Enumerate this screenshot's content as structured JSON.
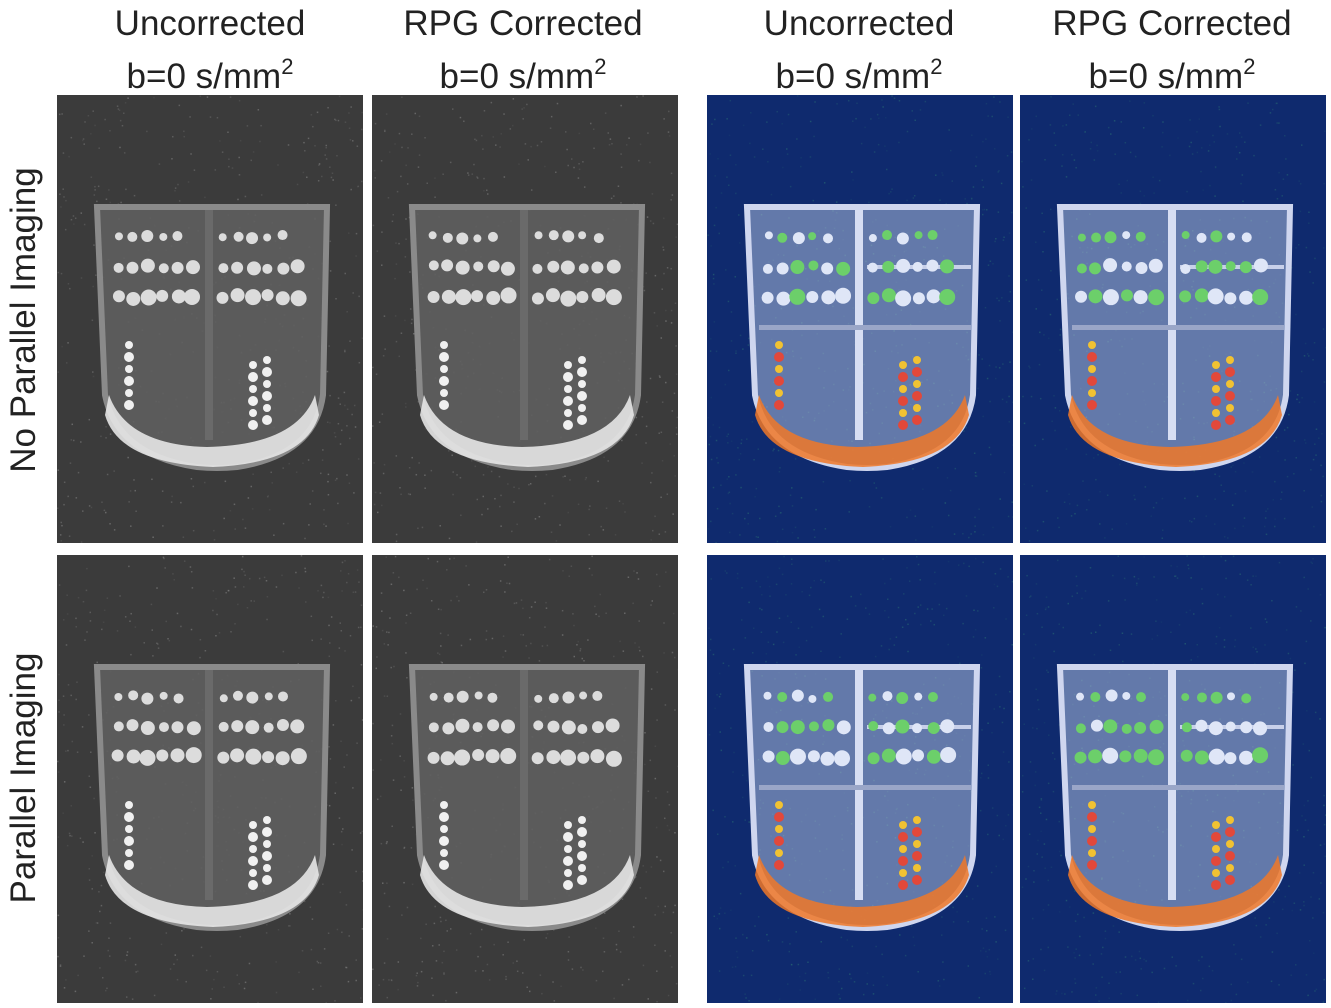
{
  "column_titles": [
    {
      "line1": "Uncorrected",
      "line2_base": "b=0 s/mm",
      "line2_sup": "2"
    },
    {
      "line1": "RPG Corrected",
      "line2_base": "b=0 s/mm",
      "line2_sup": "2"
    },
    {
      "line1": "Uncorrected",
      "line2_base": "b=0 s/mm",
      "line2_sup": "2"
    },
    {
      "line1": "RPG Corrected",
      "line2_base": "b=0 s/mm",
      "line2_sup": "2"
    }
  ],
  "row_labels": [
    "No Parallel Imaging",
    "Parallel Imaging"
  ],
  "colors": {
    "grayscale_background": "#3b3b3b",
    "overlay_background": "#0f2a6e",
    "overlay_phantom": "#c9d3ee"
  },
  "panels": [
    {
      "row": 0,
      "col": 0,
      "style": "grayscale",
      "description_icon": "mri-phantom-image"
    },
    {
      "row": 0,
      "col": 1,
      "style": "grayscale",
      "description_icon": "mri-phantom-image"
    },
    {
      "row": 0,
      "col": 2,
      "style": "overlay",
      "description_icon": "mri-phantom-overlay"
    },
    {
      "row": 0,
      "col": 3,
      "style": "overlay",
      "description_icon": "mri-phantom-overlay"
    },
    {
      "row": 1,
      "col": 0,
      "style": "grayscale",
      "description_icon": "mri-phantom-image"
    },
    {
      "row": 1,
      "col": 1,
      "style": "grayscale",
      "description_icon": "mri-phantom-image"
    },
    {
      "row": 1,
      "col": 2,
      "style": "overlay",
      "description_icon": "mri-phantom-overlay"
    },
    {
      "row": 1,
      "col": 3,
      "style": "overlay",
      "description_icon": "mri-phantom-overlay"
    }
  ]
}
